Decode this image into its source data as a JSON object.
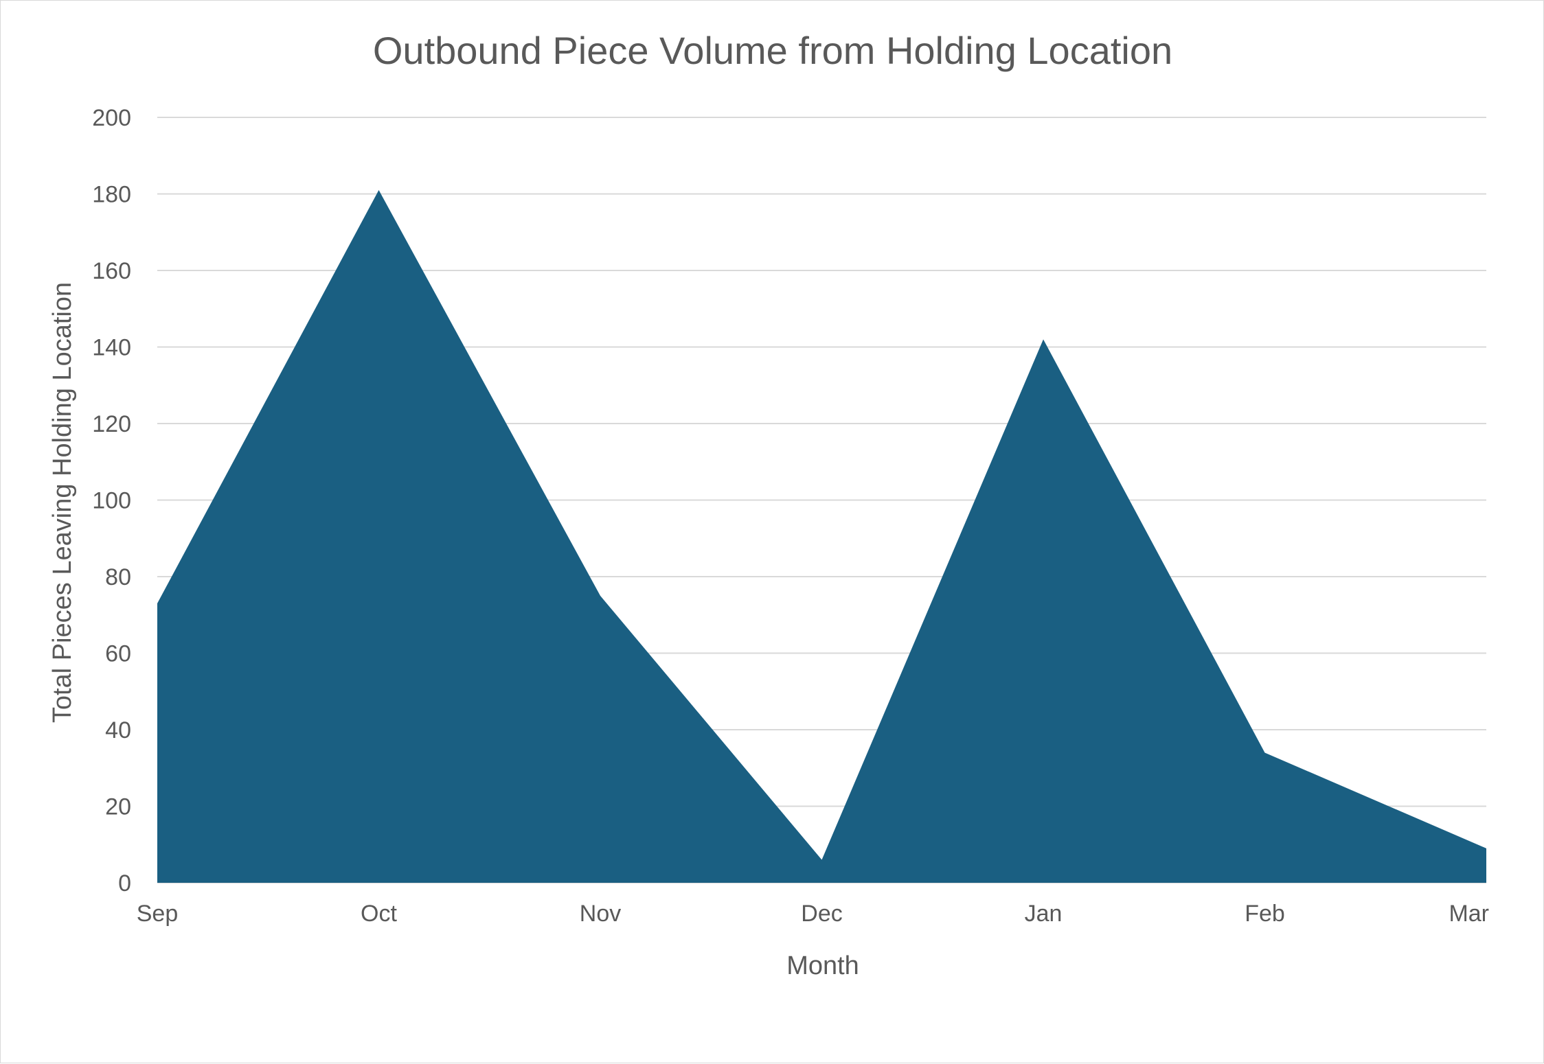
{
  "chart_data": {
    "type": "area",
    "title": "Outbound Piece Volume from Holding Location",
    "xlabel": "Month",
    "ylabel": "Total Pieces Leaving Holding Location",
    "categories": [
      "Sep",
      "Oct",
      "Nov",
      "Dec",
      "Jan",
      "Feb",
      "Mar"
    ],
    "series": [
      {
        "values": [
          73,
          181,
          75,
          6,
          142,
          34,
          9
        ],
        "color": "#1a5f82"
      }
    ],
    "ylim": [
      0,
      200
    ],
    "yticks": [
      0,
      20,
      40,
      60,
      80,
      100,
      120,
      140,
      160,
      180,
      200
    ],
    "grid": true,
    "legend": "none"
  }
}
